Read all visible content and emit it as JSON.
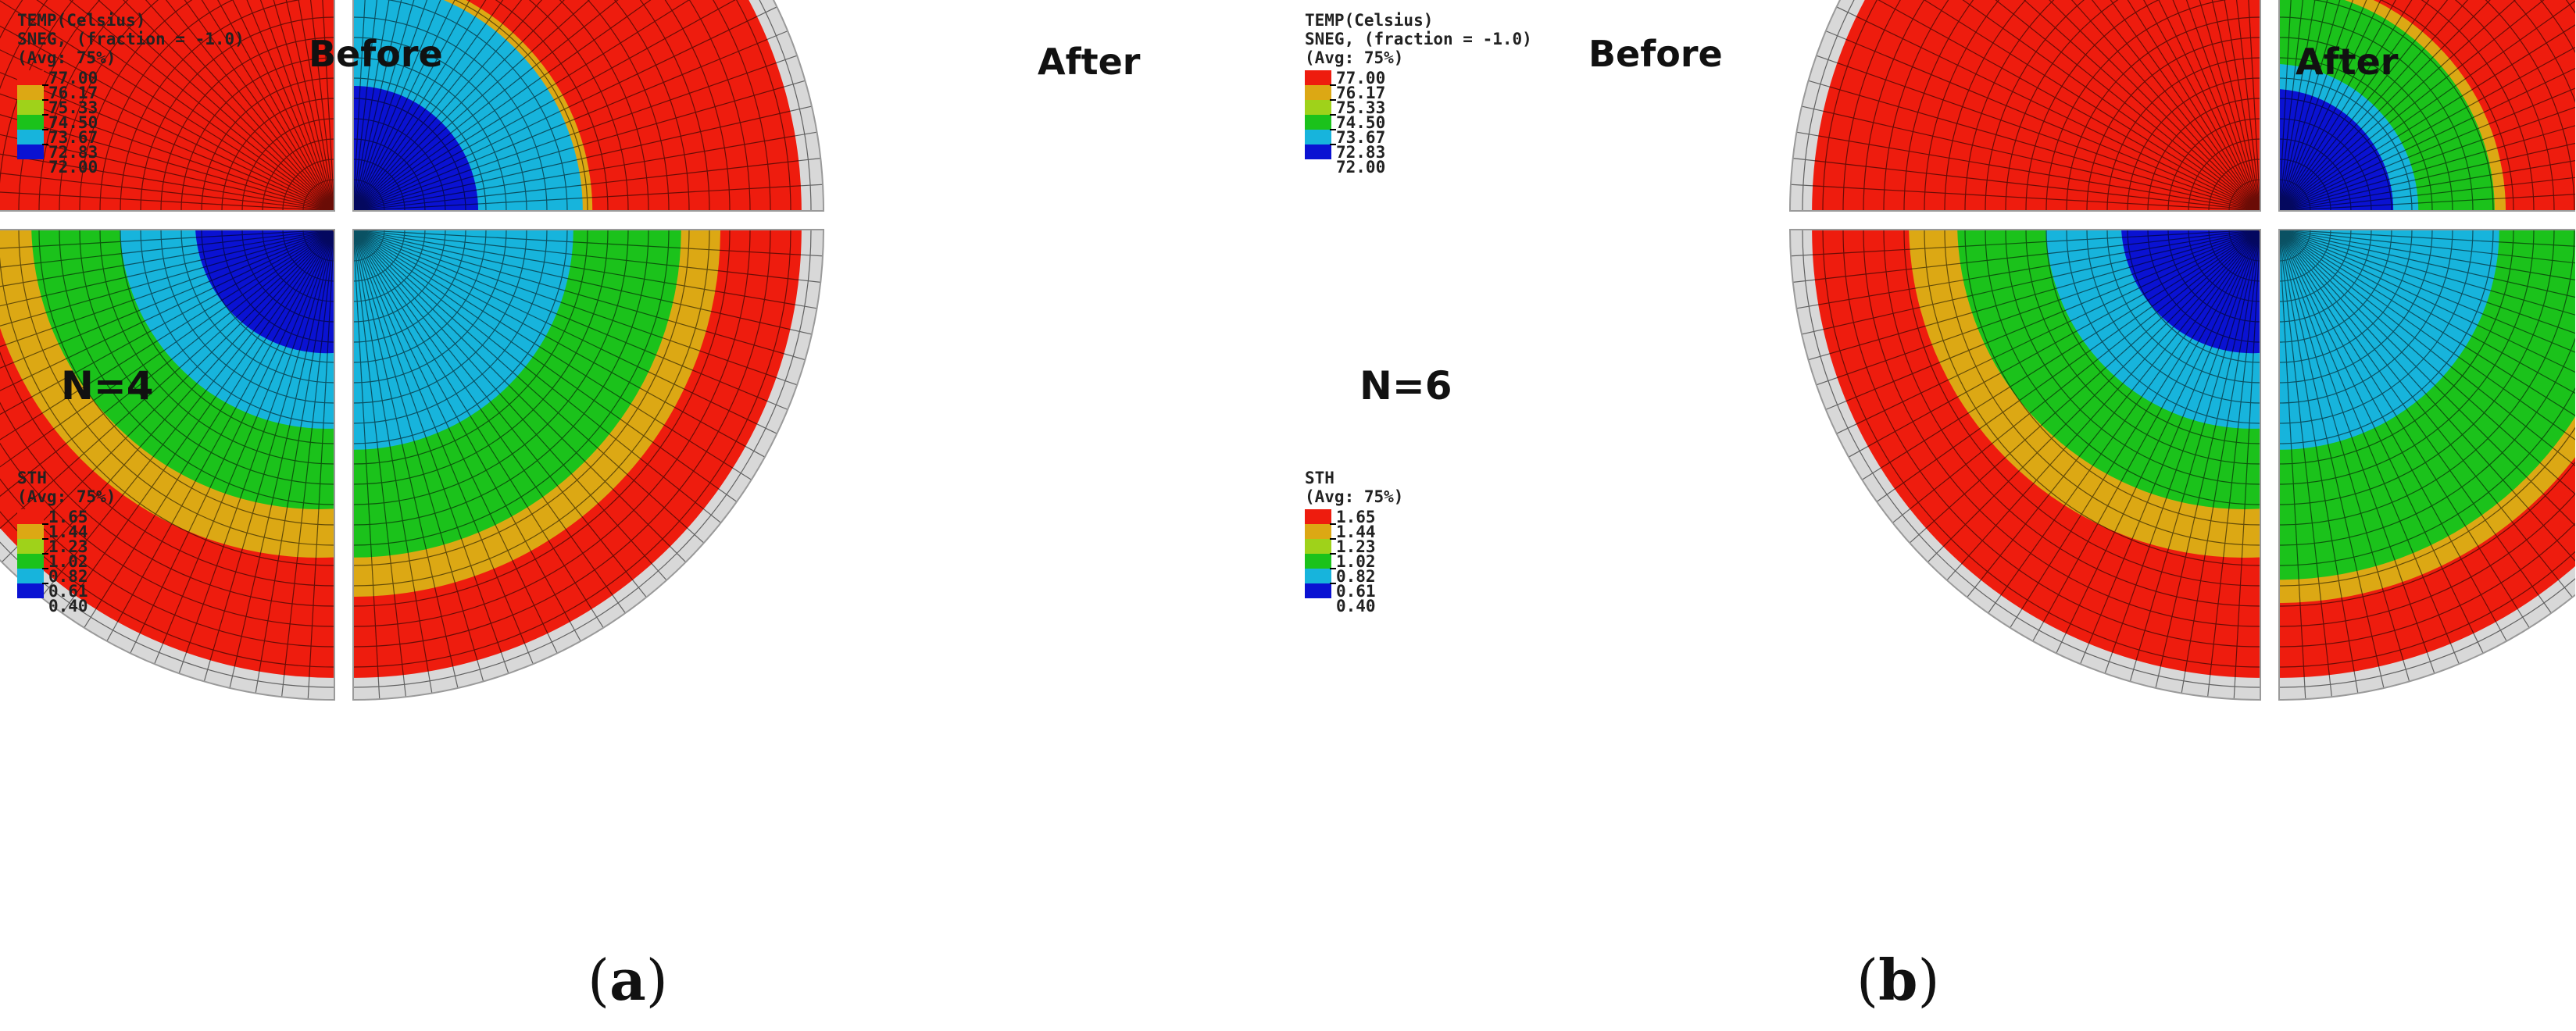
{
  "panels": [
    {
      "id": "a",
      "caption_open": "(",
      "caption_letter": "a",
      "caption_close": ")",
      "n_label": "N=4",
      "title_before": "Before",
      "title_after": "After"
    },
    {
      "id": "b",
      "caption_open": "(",
      "caption_letter": "b",
      "caption_close": ")",
      "n_label": "N=6",
      "title_before": "Before",
      "title_after": "After"
    }
  ],
  "legend_temp": {
    "line1": "TEMP(Celsius)",
    "line2": "SNEG, (fraction = -1.0)",
    "line3": "(Avg: 75%)",
    "values": [
      "77.00",
      "76.17",
      "75.33",
      "74.50",
      "73.67",
      "72.83",
      "72.00"
    ]
  },
  "legend_sth": {
    "line1": "STH",
    "line2": "(Avg: 75%)",
    "values": [
      "1.65",
      "1.44",
      "1.23",
      "1.02",
      "0.82",
      "0.61",
      "0.40"
    ]
  },
  "colors": {
    "band_red": "#ee1c0e",
    "band_orange": "#dca814",
    "band_green": "#1bc21b",
    "band_cyan": "#17b4dc",
    "band_blue": "#0a12d2",
    "band_yellowgreen": "#9fd21a",
    "rim_gray": "#d8d8d8",
    "mesh_line": "#000000"
  }
}
